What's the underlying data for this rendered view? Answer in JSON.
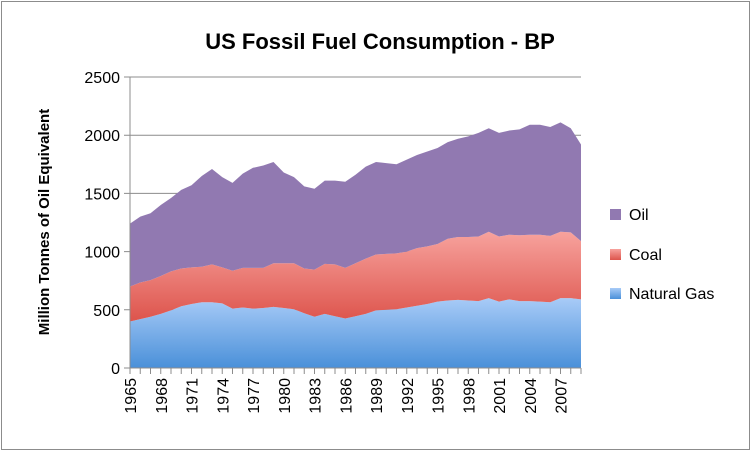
{
  "chart_data": {
    "type": "area",
    "stacked": true,
    "title": "US Fossil Fuel Consumption - BP",
    "xlabel": "",
    "ylabel": "Million Tonnes of Oil Equivalent",
    "ylim": [
      0,
      2500
    ],
    "yticks": [
      0,
      500,
      1000,
      1500,
      2000,
      2500
    ],
    "xtick_labels": [
      "1965",
      "1968",
      "1971",
      "1974",
      "1977",
      "1980",
      "1983",
      "1986",
      "1989",
      "1992",
      "1995",
      "1998",
      "2001",
      "2004",
      "2007"
    ],
    "grid": "horizontal major",
    "legend_position": "right",
    "x": [
      1965,
      1966,
      1967,
      1968,
      1969,
      1970,
      1971,
      1972,
      1973,
      1974,
      1975,
      1976,
      1977,
      1978,
      1979,
      1980,
      1981,
      1982,
      1983,
      1984,
      1985,
      1986,
      1987,
      1988,
      1989,
      1990,
      1991,
      1992,
      1993,
      1994,
      1995,
      1996,
      1997,
      1998,
      1999,
      2000,
      2001,
      2002,
      2003,
      2004,
      2005,
      2006,
      2007,
      2008,
      2009
    ],
    "series": [
      {
        "name": "Natural Gas",
        "color": "#7fb2ee",
        "values": [
          400,
          420,
          440,
          465,
          495,
          530,
          550,
          565,
          565,
          555,
          510,
          520,
          510,
          515,
          525,
          515,
          505,
          470,
          440,
          465,
          445,
          425,
          445,
          465,
          495,
          500,
          505,
          520,
          535,
          550,
          570,
          580,
          585,
          580,
          575,
          600,
          570,
          590,
          575,
          575,
          570,
          565,
          600,
          600,
          590
        ]
      },
      {
        "name": "Coal",
        "color": "#ea7670",
        "values": [
          300,
          315,
          315,
          325,
          335,
          325,
          315,
          305,
          325,
          310,
          325,
          340,
          350,
          345,
          375,
          385,
          395,
          385,
          405,
          430,
          445,
          435,
          455,
          475,
          480,
          480,
          480,
          480,
          495,
          495,
          495,
          530,
          540,
          545,
          555,
          570,
          560,
          555,
          565,
          570,
          575,
          570,
          570,
          565,
          500
        ]
      },
      {
        "name": "Oil",
        "color": "#9179b1",
        "values": [
          540,
          565,
          575,
          610,
          630,
          675,
          705,
          780,
          820,
          775,
          755,
          810,
          860,
          880,
          870,
          780,
          740,
          705,
          695,
          715,
          720,
          740,
          760,
          790,
          795,
          780,
          765,
          790,
          800,
          815,
          825,
          830,
          845,
          865,
          890,
          890,
          890,
          895,
          910,
          945,
          945,
          935,
          940,
          895,
          830
        ]
      }
    ]
  }
}
